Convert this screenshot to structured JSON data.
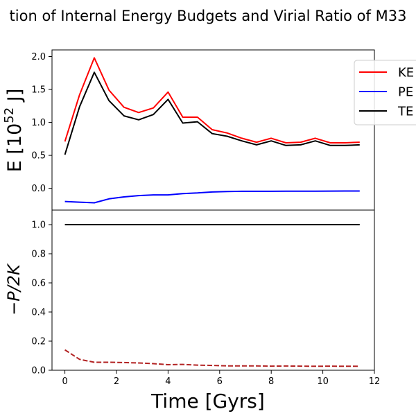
{
  "figure_title": "tion of Internal Energy Budgets and Virial Ratio of M33",
  "chart_data": [
    {
      "type": "line",
      "ylabel_main": "E [10",
      "ylabel_sup": "52",
      "ylabel_unit": " J]",
      "xlim": [
        -0.5,
        12
      ],
      "ylim": [
        -0.33,
        2.1
      ],
      "yticks": [
        0.0,
        0.5,
        1.0,
        1.5,
        2.0
      ],
      "ytick_labels": [
        "0.0",
        "0.5",
        "1.0",
        "1.5",
        "2.0"
      ],
      "grid": false,
      "legend_position": "top-right",
      "x": [
        0.0,
        0.57,
        1.14,
        1.71,
        2.29,
        2.86,
        3.43,
        4.0,
        4.57,
        5.14,
        5.71,
        6.29,
        6.86,
        7.43,
        8.0,
        8.57,
        9.14,
        9.71,
        10.29,
        10.86,
        11.43
      ],
      "series": [
        {
          "name": "KE",
          "color": "#ff0000",
          "values": [
            0.71,
            1.42,
            1.98,
            1.49,
            1.23,
            1.15,
            1.22,
            1.46,
            1.08,
            1.08,
            0.89,
            0.84,
            0.76,
            0.7,
            0.76,
            0.69,
            0.7,
            0.76,
            0.69,
            0.69,
            0.7
          ]
        },
        {
          "name": "PE",
          "color": "#0000ff",
          "values": [
            -0.2,
            -0.21,
            -0.22,
            -0.16,
            -0.13,
            -0.11,
            -0.1,
            -0.1,
            -0.08,
            -0.07,
            -0.055,
            -0.048,
            -0.045,
            -0.045,
            -0.045,
            -0.044,
            -0.043,
            -0.043,
            -0.042,
            -0.041,
            -0.041
          ]
        },
        {
          "name": "TE",
          "color": "#000000",
          "values": [
            0.51,
            1.24,
            1.76,
            1.33,
            1.1,
            1.04,
            1.12,
            1.35,
            0.99,
            1.01,
            0.83,
            0.79,
            0.72,
            0.66,
            0.72,
            0.65,
            0.66,
            0.72,
            0.65,
            0.65,
            0.66
          ]
        }
      ]
    },
    {
      "type": "line",
      "ylabel": "−P/2K",
      "xlabel": "Time [Gyrs]",
      "xlim": [
        -0.5,
        12
      ],
      "ylim": [
        0.0,
        1.1
      ],
      "xticks": [
        0,
        2,
        4,
        6,
        8,
        10,
        12
      ],
      "xtick_labels": [
        "0",
        "2",
        "4",
        "6",
        "8",
        "10",
        "12"
      ],
      "yticks": [
        0.0,
        0.2,
        0.4,
        0.6,
        0.8,
        1.0
      ],
      "ytick_labels": [
        "0.0",
        "0.2",
        "0.4",
        "0.6",
        "0.8",
        "1.0"
      ],
      "grid": false,
      "x": [
        0.0,
        0.57,
        1.14,
        1.71,
        2.29,
        2.86,
        3.43,
        4.0,
        4.57,
        5.14,
        5.71,
        6.29,
        6.86,
        7.43,
        8.0,
        8.57,
        9.14,
        9.71,
        10.29,
        10.86,
        11.43
      ],
      "series": [
        {
          "color": "#000000",
          "dash": "solid",
          "values": [
            1.0,
            1.0,
            1.0,
            1.0,
            1.0,
            1.0,
            1.0,
            1.0,
            1.0,
            1.0,
            1.0,
            1.0,
            1.0,
            1.0,
            1.0,
            1.0,
            1.0,
            1.0,
            1.0,
            1.0,
            1.0
          ]
        },
        {
          "color": "#b22222",
          "dash": "dashed",
          "values": [
            0.14,
            0.075,
            0.055,
            0.055,
            0.053,
            0.05,
            0.045,
            0.038,
            0.04,
            0.035,
            0.033,
            0.03,
            0.03,
            0.03,
            0.028,
            0.029,
            0.028,
            0.027,
            0.028,
            0.027,
            0.027
          ]
        }
      ]
    }
  ]
}
